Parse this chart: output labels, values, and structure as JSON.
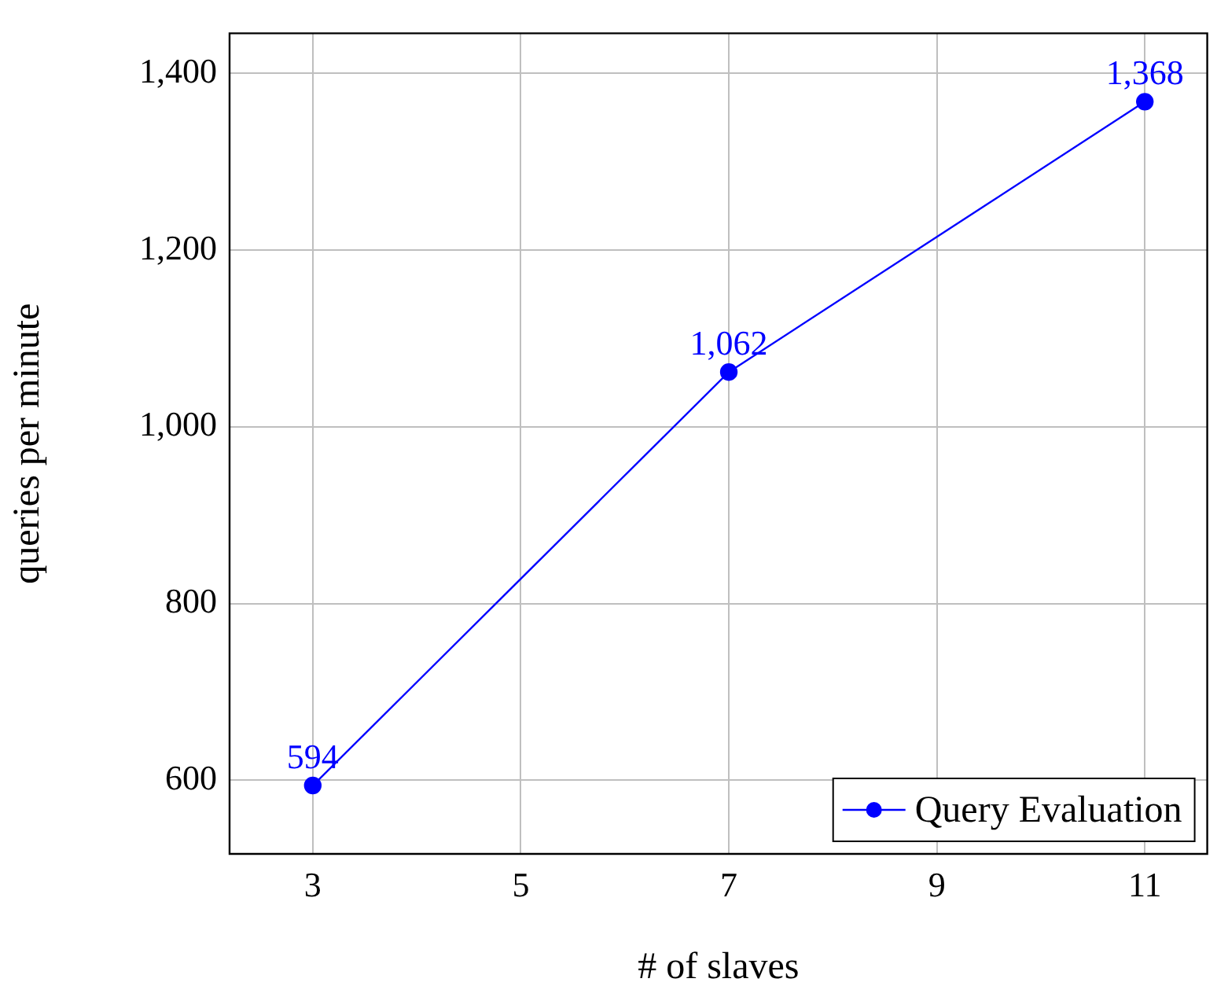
{
  "chart_data": {
    "type": "line",
    "xlabel": "# of slaves",
    "ylabel": "queries per minute",
    "x": [
      3,
      7,
      11
    ],
    "series": [
      {
        "name": "Query Evaluation",
        "color": "#0000ff",
        "values": [
          594,
          1062,
          1368
        ],
        "value_labels": [
          "594",
          "1,062",
          "1,368"
        ]
      }
    ],
    "xlim": [
      2.2,
      11.6
    ],
    "xticks": [
      3,
      5,
      7,
      9,
      11
    ],
    "ylim": [
      516.6,
      1445.4
    ],
    "yticks": [
      {
        "value": 600,
        "label": "600"
      },
      {
        "value": 800,
        "label": "800"
      },
      {
        "value": 1000,
        "label": "1,000"
      },
      {
        "value": 1200,
        "label": "1,200"
      },
      {
        "value": 1400,
        "label": "1,400"
      }
    ],
    "grid": true,
    "legend": "bottom right",
    "marker": "circle",
    "line_style": "solid"
  }
}
